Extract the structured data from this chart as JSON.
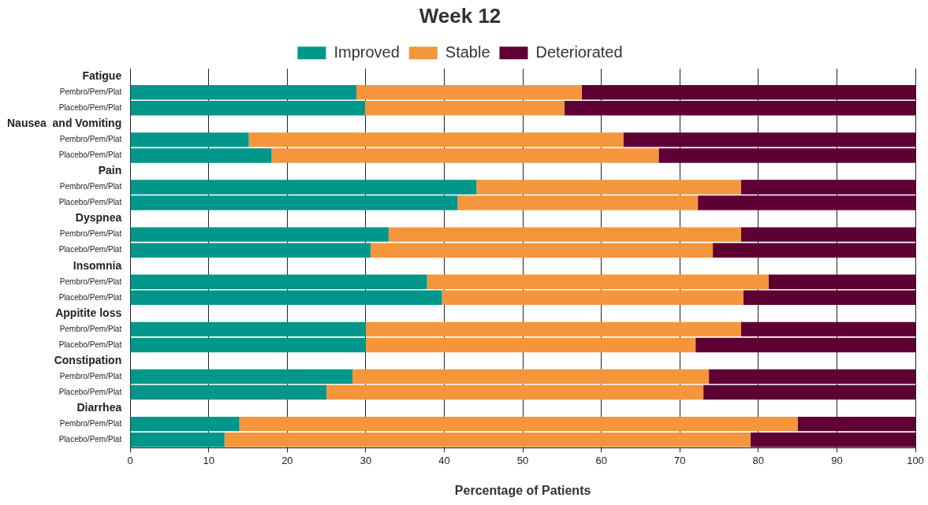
{
  "chart_data": {
    "type": "bar",
    "title": "Week 12",
    "xlabel": "Percentage of Patients",
    "orientation": "horizontal",
    "stacked": true,
    "grid": "x",
    "legend": "top",
    "categories": [
      "Fatigue",
      "Pembro/Pem/Plat",
      "Placebo/Pem/Plat",
      "Nausea  and Vomiting",
      "Pembro/Pem/Plat",
      "Placebo/Pem/Plat",
      "Pain",
      "Pembro/Pem/Plat",
      "Placebo/Pem/Plat",
      "Dyspnea",
      "Pembro/Pem/Plat",
      "Placebo/Pem/Plat",
      "Insomnia",
      "Pembro/Pem/Plat",
      "Placebo/Pem/Plat",
      "Appitite loss",
      "Pembro/Pem/Plat",
      "Placebo/Pem/Plat",
      "Constipation",
      "Pembro/Pem/Plat",
      "Placebo/Pem/Plat",
      "Diarrhea",
      "Pembro/Pem/Plat",
      "Placebo/Pem/Plat"
    ],
    "xlim": [
      0,
      100
    ],
    "xticks": [
      0,
      10,
      20,
      30,
      40,
      50,
      60,
      70,
      80,
      90,
      100
    ],
    "series": [
      {
        "name": "Improved",
        "color": "#00968a",
        "values": [
          null,
          28.8,
          29.9,
          null,
          15.1,
          18.0,
          null,
          44.1,
          41.7,
          null,
          32.9,
          30.6,
          null,
          37.8,
          39.7,
          null,
          30.0,
          30.0,
          null,
          28.3,
          25.0,
          null,
          13.9,
          12.0
        ]
      },
      {
        "name": "Stable",
        "color": "#f5953c",
        "values": [
          null,
          28.7,
          25.4,
          null,
          47.7,
          49.3,
          null,
          33.7,
          30.6,
          null,
          44.9,
          43.6,
          null,
          43.5,
          38.4,
          null,
          47.8,
          42.0,
          null,
          45.4,
          48.0,
          null,
          71.1,
          67.0
        ]
      },
      {
        "name": "Deteriorated",
        "color": "#5e0034",
        "values": [
          null,
          42.5,
          44.7,
          null,
          37.2,
          32.7,
          null,
          22.2,
          27.7,
          null,
          22.2,
          25.8,
          null,
          18.7,
          21.9,
          null,
          22.2,
          28.0,
          null,
          26.3,
          27.0,
          null,
          15.0,
          21.0
        ]
      }
    ]
  }
}
